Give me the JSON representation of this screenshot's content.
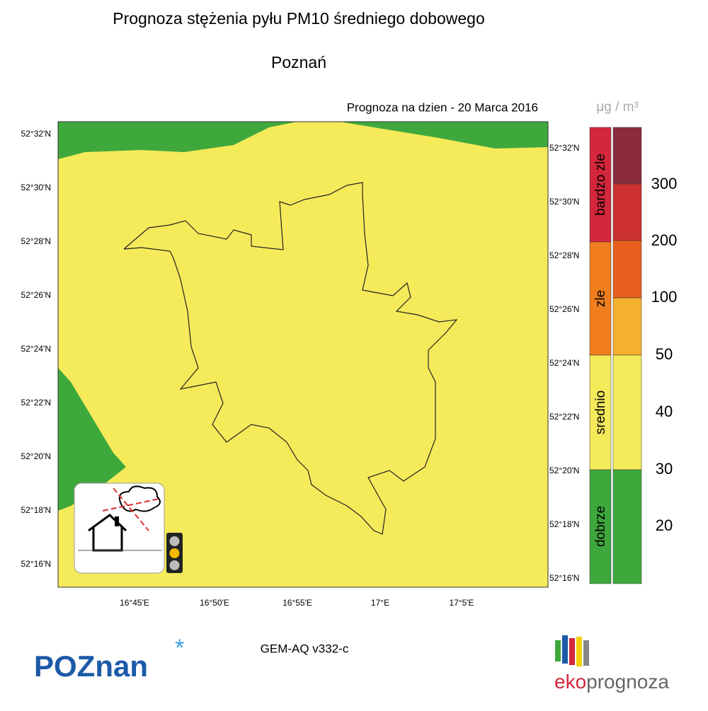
{
  "header": {
    "title": "Prognoza stężenia pyłu PM10 średniego dobowego",
    "city": "Poznań",
    "forecast_date": "Prognoza na dzien -  20 Marca 2016"
  },
  "map": {
    "lat_labels_left": [
      "52°32'N",
      "52°30'N",
      "52°28'N",
      "52°26'N",
      "52°24'N",
      "52°22'N",
      "52°20'N",
      "52°18'N",
      "52°16'N"
    ],
    "lat_labels_right": [
      "52°32'N",
      "52°30'N",
      "52°28'N",
      "52°26'N",
      "52°24'N",
      "52°22'N",
      "52°20'N",
      "52°18'N",
      "52°16'N"
    ],
    "lon_labels": [
      "16°45'E",
      "16°50'E",
      "16°55'E",
      "17°E",
      "17°5'E"
    ]
  },
  "legend": {
    "unit": "μg / m³",
    "categories": [
      "bardzo zle",
      "zle",
      "srednio",
      "dobrze"
    ],
    "levels": [
      300,
      200,
      100,
      50,
      40,
      30,
      20
    ]
  },
  "footer": {
    "model": "GEM-AQ v332-c",
    "logo_left": "POZnan",
    "logo_right_a": "eko",
    "logo_right_b": "prognoza"
  }
}
